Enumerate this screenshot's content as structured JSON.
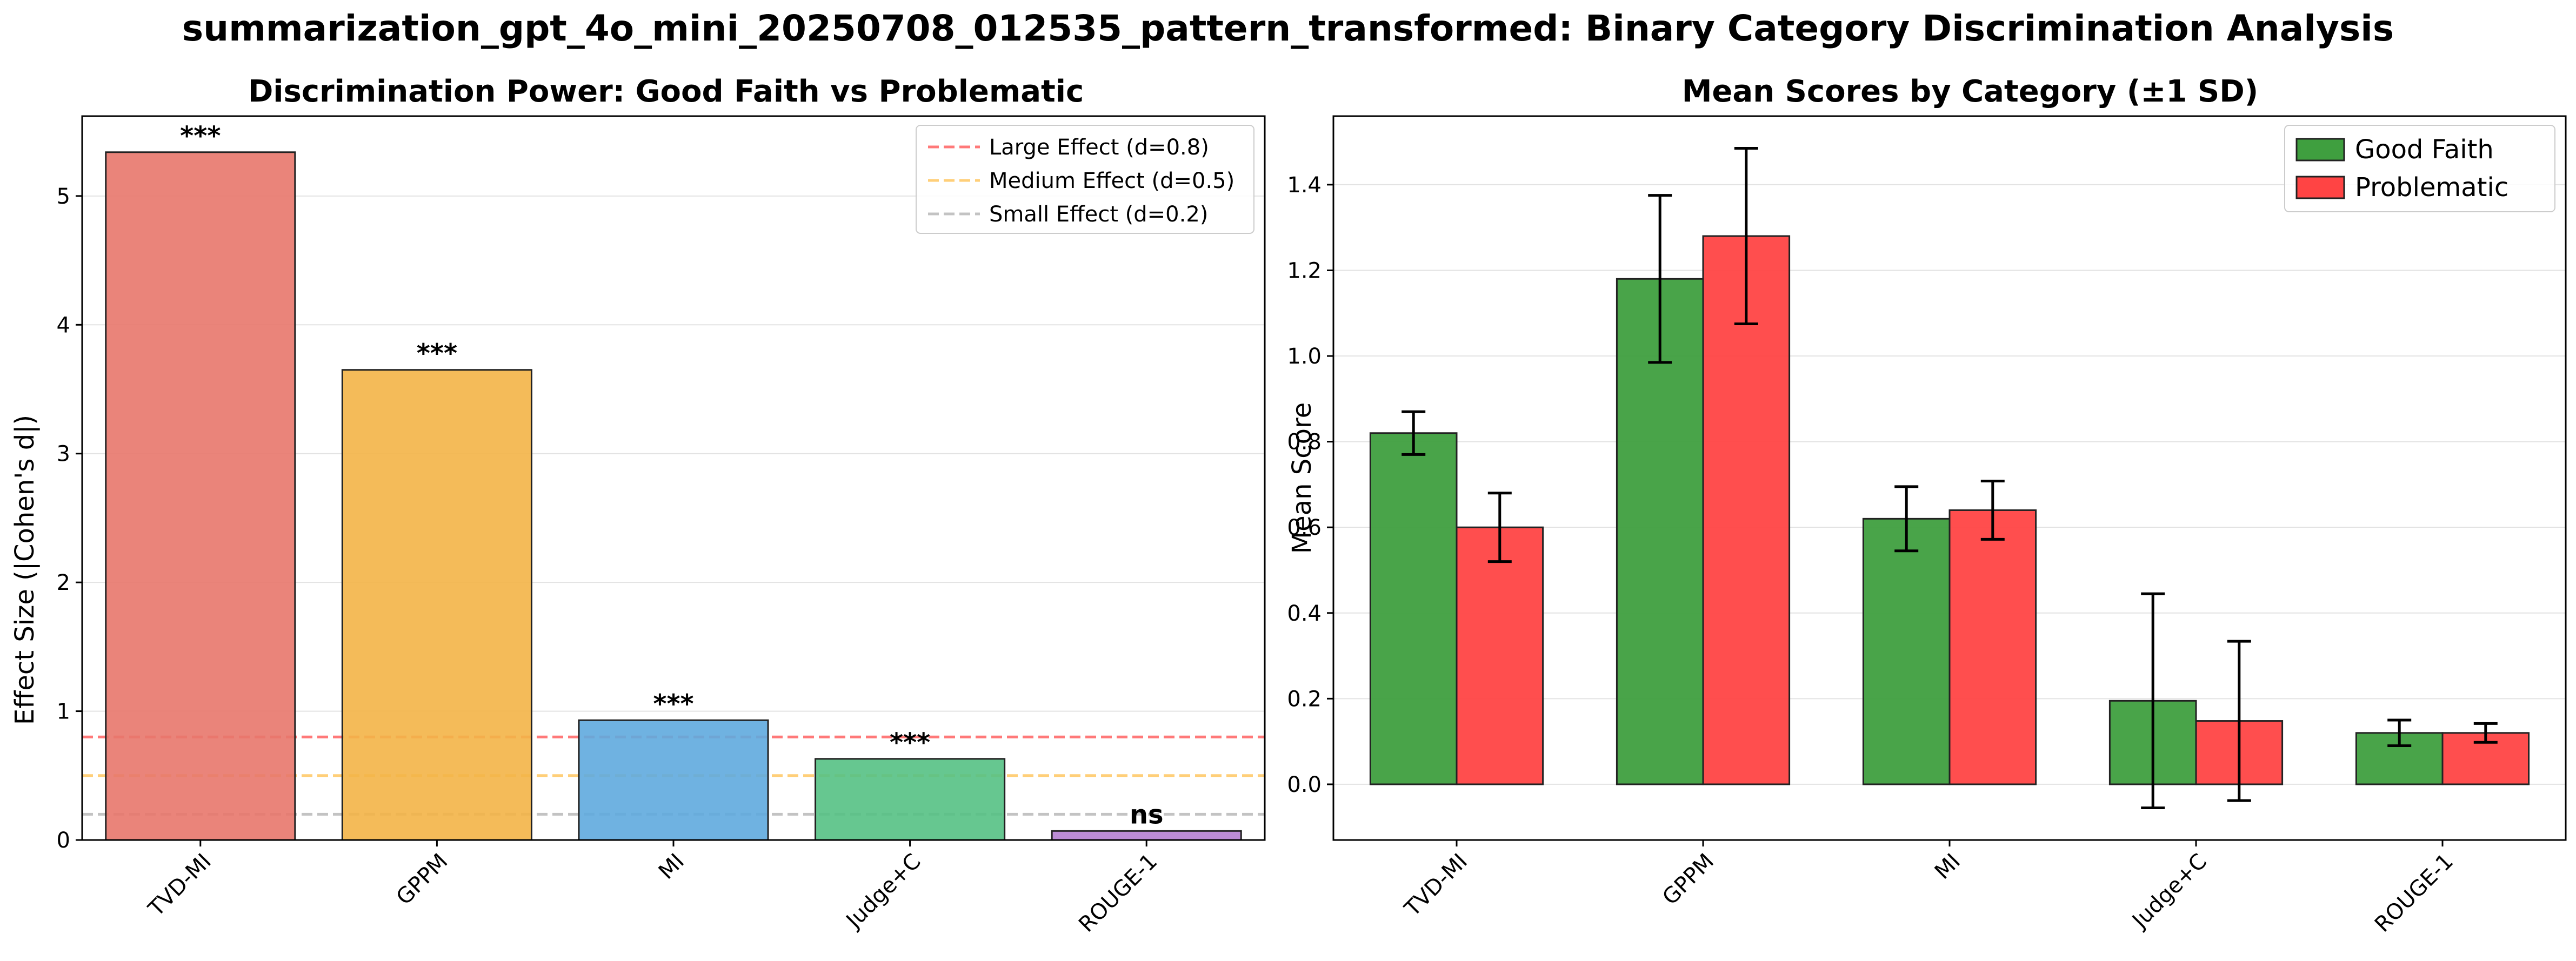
{
  "figure_title": "summarization_gpt_4o_mini_20250708_012535_pattern_transformed: Binary Category Discrimination Analysis",
  "chart_data": [
    {
      "type": "bar",
      "title": "Discrimination Power: Good Faith vs Problematic",
      "xlabel": "",
      "ylabel": "Effect Size (|Cohen's d|)",
      "categories": [
        "TVD-MI",
        "GPPM",
        "MI",
        "Judge+C",
        "ROUGE-1"
      ],
      "values": [
        5.34,
        3.65,
        0.93,
        0.63,
        0.07
      ],
      "significance": [
        "***",
        "***",
        "***",
        "***",
        "ns"
      ],
      "bar_colors": [
        "#e8776b",
        "#f3b447",
        "#5faade",
        "#55c184",
        "#b57fd0"
      ],
      "ylim": [
        0,
        5.62
      ],
      "yticks": [
        0,
        1,
        2,
        3,
        4,
        5
      ],
      "grid": "y",
      "legend_position": "top-right",
      "reference_lines": [
        {
          "label": "Large Effect (d=0.8)",
          "value": 0.8,
          "color": "#ff4d4d"
        },
        {
          "label": "Medium Effect (d=0.5)",
          "value": 0.5,
          "color": "#ffc04d"
        },
        {
          "label": "Small Effect (d=0.2)",
          "value": 0.2,
          "color": "#b0b0b0"
        }
      ]
    },
    {
      "type": "bar",
      "title": "Mean Scores by Category (±1 SD)",
      "xlabel": "",
      "ylabel": "Mean Score",
      "categories": [
        "TVD-MI",
        "GPPM",
        "MI",
        "Judge+C",
        "ROUGE-1"
      ],
      "series": [
        {
          "name": "Good Faith",
          "color": "#3f9f3f",
          "values": [
            0.82,
            1.18,
            0.62,
            0.195,
            0.12
          ],
          "sd": [
            0.05,
            0.195,
            0.075,
            0.25,
            0.03
          ]
        },
        {
          "name": "Problematic",
          "color": "#ff4444",
          "values": [
            0.6,
            1.28,
            0.64,
            0.148,
            0.12
          ],
          "sd": [
            0.08,
            0.205,
            0.068,
            0.186,
            0.022
          ]
        }
      ],
      "ylim": [
        -0.13,
        1.56
      ],
      "yticks": [
        0.0,
        0.2,
        0.4,
        0.6,
        0.8,
        1.0,
        1.2,
        1.4
      ],
      "grid": "y",
      "legend_position": "top-right"
    }
  ]
}
